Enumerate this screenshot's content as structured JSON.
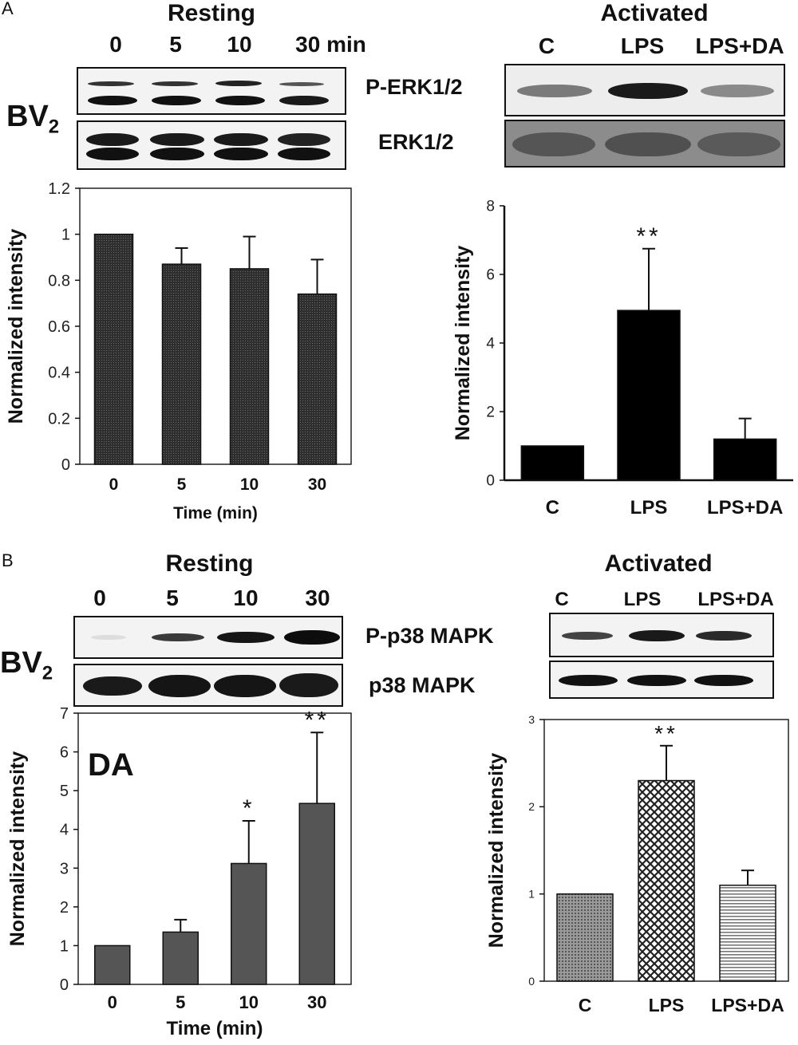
{
  "panel_a": {
    "letter": "A",
    "resting": {
      "header": "Resting",
      "lanes": [
        "0",
        "5",
        "10",
        "30 min"
      ],
      "cell_label": "BV",
      "cell_sub": "2",
      "proteins": [
        "P-ERK1/2",
        "ERK1/2"
      ]
    },
    "activated": {
      "header": "Activated",
      "lanes": [
        "C",
        "LPS",
        "LPS+DA"
      ]
    }
  },
  "panel_b": {
    "letter": "B",
    "resting": {
      "header": "Resting",
      "lanes": [
        "0",
        "5",
        "10",
        "30"
      ],
      "cell_label": "BV",
      "cell_sub": "2",
      "proteins": [
        "P-p38 MAPK",
        "p38 MAPK"
      ]
    },
    "activated": {
      "header": "Activated",
      "lanes": [
        "C",
        "LPS",
        "LPS+DA"
      ]
    }
  },
  "chart_data": [
    {
      "id": "chart-a-resting",
      "type": "bar",
      "categories": [
        "0",
        "5",
        "10",
        "30"
      ],
      "values": [
        1.0,
        0.87,
        0.85,
        0.74
      ],
      "errors": [
        0,
        0.07,
        0.14,
        0.15
      ],
      "significance": [
        "",
        "",
        "",
        ""
      ],
      "xlabel": "Time (min)",
      "ylabel": "Normalized intensity",
      "ylim": [
        0,
        1.2
      ],
      "yticks": [
        "0",
        "0.2",
        "0.4",
        "0.6",
        "0.8",
        "1",
        "1.2"
      ],
      "annotation": "",
      "bar_color": "#3a3a3a"
    },
    {
      "id": "chart-a-activated",
      "type": "bar",
      "categories": [
        "C",
        "LPS",
        "LPS+DA"
      ],
      "values": [
        1.0,
        4.95,
        1.2
      ],
      "errors": [
        0,
        1.8,
        0.6
      ],
      "significance": [
        "",
        "**",
        ""
      ],
      "xlabel": "",
      "ylabel": "Normalized intensity",
      "ylim": [
        0,
        8
      ],
      "yticks": [
        "0",
        "2",
        "4",
        "6",
        "8"
      ],
      "annotation": "",
      "bar_color": "#000000"
    },
    {
      "id": "chart-b-resting",
      "type": "bar",
      "categories": [
        "0",
        "5",
        "10",
        "30"
      ],
      "values": [
        1.0,
        1.35,
        3.12,
        4.67
      ],
      "errors": [
        0,
        0.32,
        1.1,
        1.83
      ],
      "significance": [
        "",
        "",
        "*",
        "**"
      ],
      "xlabel": "Time (min)",
      "ylabel": "Normalized intensity",
      "ylim": [
        0,
        7
      ],
      "yticks": [
        "0",
        "1",
        "2",
        "3",
        "4",
        "5",
        "6",
        "7"
      ],
      "annotation": "DA",
      "bar_color": "#555555"
    },
    {
      "id": "chart-b-activated",
      "type": "bar",
      "categories": [
        "C",
        "LPS",
        "LPS+DA"
      ],
      "values": [
        1.0,
        2.3,
        1.1
      ],
      "errors": [
        0,
        0.4,
        0.17
      ],
      "significance": [
        "",
        "**",
        ""
      ],
      "xlabel": "",
      "ylabel": "Normalized intensity",
      "ylim": [
        0,
        3
      ],
      "yticks": [
        "0",
        "1",
        "2",
        "3"
      ],
      "annotation": "",
      "bar_color": "#8a8a8a"
    }
  ]
}
